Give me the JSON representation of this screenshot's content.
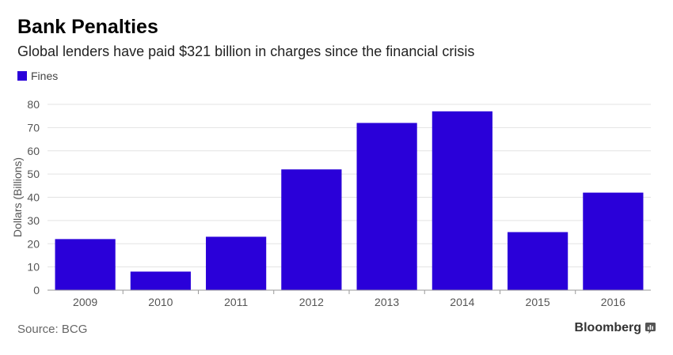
{
  "header": {
    "title": "Bank Penalties",
    "subtitle": "Global lenders have paid $321 billion in charges since the financial crisis"
  },
  "footer": {
    "source": "Source: BCG",
    "brand": "Bloomberg",
    "brand_icon": "bloomberg-bars-icon"
  },
  "colors": {
    "bar": "#2a00d9",
    "grid": "#e3e3e3",
    "axis": "#999999",
    "text": "#555555"
  },
  "chart_data": {
    "type": "bar",
    "title": "Bank Penalties",
    "subtitle": "Global lenders have paid $321 billion in charges since the financial crisis",
    "categories": [
      "2009",
      "2010",
      "2011",
      "2012",
      "2013",
      "2014",
      "2015",
      "2016"
    ],
    "series": [
      {
        "name": "Fines",
        "values": [
          22,
          8,
          23,
          52,
          72,
          77,
          25,
          42
        ]
      }
    ],
    "xlabel": "",
    "ylabel": "Dollars (Billions)",
    "ylim": [
      0,
      80
    ],
    "yticks": [
      0,
      10,
      20,
      30,
      40,
      50,
      60,
      70,
      80
    ],
    "grid": true,
    "legend_position": "top-left"
  }
}
